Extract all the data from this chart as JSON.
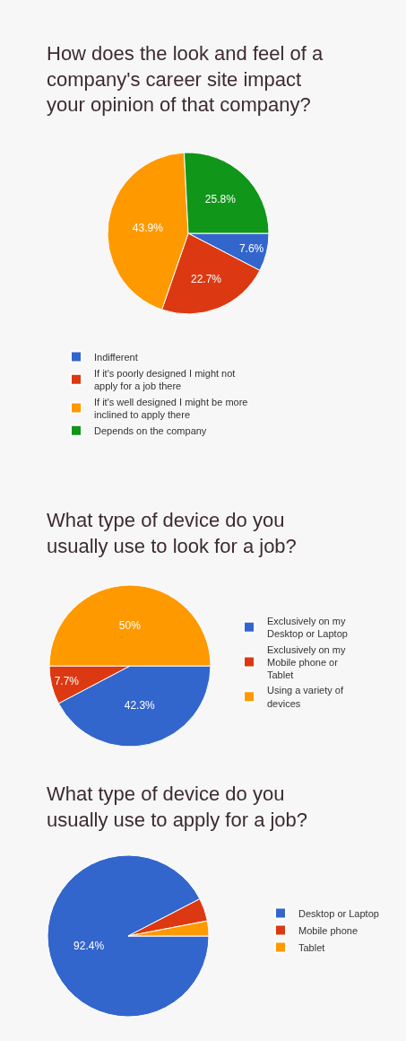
{
  "chart_data": [
    {
      "type": "pie",
      "title": "How does the look and feel of a company's career site impact your opinion of that company?",
      "categories": [
        "Indifferent",
        "If it's poorly designed I might not apply for a job there",
        "If it's well designed I might be more inclined to apply there",
        "Depends on the company"
      ],
      "values": [
        7.6,
        22.7,
        43.9,
        25.8
      ],
      "colors": [
        "#3366cc",
        "#dc3912",
        "#ff9900",
        "#109618"
      ],
      "value_labels": [
        "7.6%",
        "22.7%",
        "43.9%",
        "25.8%"
      ],
      "legend": "bottom"
    },
    {
      "type": "pie",
      "title": "What type of device do you usually use to look for a job?",
      "categories": [
        "Exclusively on my Desktop or Laptop",
        "Exclusively on my Mobile phone or Tablet",
        "Using a variety of devices"
      ],
      "values": [
        42.3,
        7.7,
        50
      ],
      "colors": [
        "#3366cc",
        "#dc3912",
        "#ff9900"
      ],
      "value_labels": [
        "42.3%",
        "7.7%",
        "50%"
      ],
      "legend": "right"
    },
    {
      "type": "pie",
      "title": "What type of device do you usually use to apply for a job?",
      "categories": [
        "Desktop or Laptop",
        "Mobile phone",
        "Tablet"
      ],
      "values": [
        92.4,
        4.6,
        3.0
      ],
      "colors": [
        "#3366cc",
        "#dc3912",
        "#ff9900"
      ],
      "value_labels": [
        "92.4%",
        null,
        null
      ],
      "legend": "right"
    }
  ]
}
